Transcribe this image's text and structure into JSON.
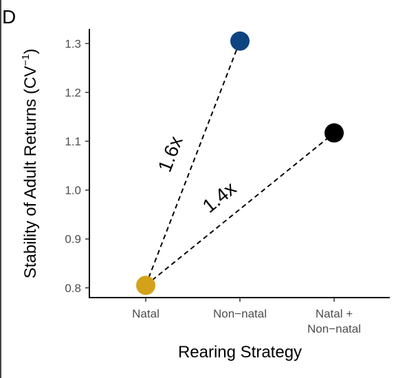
{
  "panel_label": "D",
  "chart_data": {
    "type": "scatter",
    "xlabel": "Rearing Strategy",
    "ylabel": "Stability of Adult Returns (CV",
    "ylabel_superscript": "−1",
    "ylabel_close": ")",
    "categories": [
      "Natal",
      "Non−natal",
      "Natal +\nNon−natal"
    ],
    "points": [
      {
        "category": "Natal",
        "y": 0.805,
        "color": "#d4a21a"
      },
      {
        "category": "Non−natal",
        "y": 1.305,
        "color": "#0e4480"
      },
      {
        "category": "Natal +\nNon−natal",
        "y": 1.117,
        "color": "#000000"
      }
    ],
    "ylim": [
      0.78,
      1.33
    ],
    "yticks": [
      0.8,
      0.9,
      1.0,
      1.1,
      1.2,
      1.3
    ],
    "ytick_labels": [
      "0.8",
      "0.9",
      "1.0",
      "1.1",
      "1.2",
      "1.3"
    ],
    "grid": false,
    "connectors": [
      {
        "from": "Natal",
        "to": "Non−natal",
        "style": "dashed"
      },
      {
        "from": "Natal",
        "to": "Natal +\nNon−natal",
        "style": "dashed"
      }
    ],
    "annotations": [
      {
        "text": "1.6x",
        "segment": 0
      },
      {
        "text": "1.4x",
        "segment": 1
      }
    ]
  }
}
